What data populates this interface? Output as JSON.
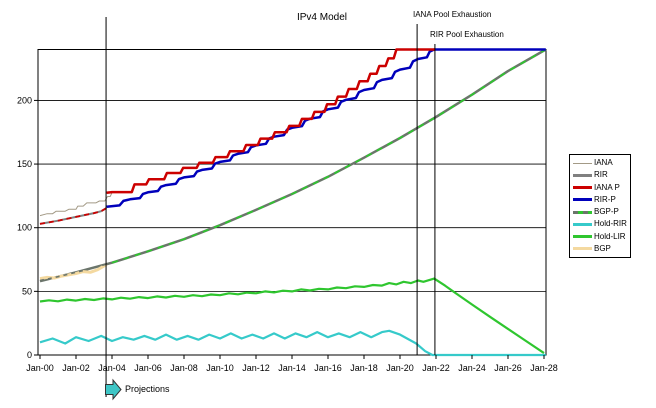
{
  "title": "IPv4 Model",
  "annotations": {
    "iana_pool": {
      "label": "IANA Pool Exhaustion"
    },
    "rir_pool": {
      "label": "RIR Pool Exhaustion"
    },
    "projections": {
      "label": "Projections",
      "arrow_color": "#3ec6c6"
    }
  },
  "legend": {
    "items": [
      {
        "label": "IANA",
        "color": "#a39a86",
        "thickness": 1
      },
      {
        "label": "RIR",
        "color": "#808080",
        "thickness": 3
      },
      {
        "label": "IANA P",
        "color": "#cc0000",
        "thickness": 3
      },
      {
        "label": "RIR-P",
        "color": "#0000bb",
        "thickness": 3
      },
      {
        "label": "BGP-P",
        "color": "#6b756b",
        "dash_color": "#2fc62f",
        "thickness": 3
      },
      {
        "label": "Hold-RIR",
        "color": "#36caca",
        "thickness": 3
      },
      {
        "label": "Hold-LIR",
        "color": "#2fc62f",
        "thickness": 3
      },
      {
        "label": "BGP",
        "color": "#f4d9a0",
        "thickness": 3
      }
    ]
  },
  "chart_data": {
    "type": "line",
    "title": "IPv4 Model",
    "xlabel": "",
    "ylabel": "",
    "x_ticks": [
      "Jan-00",
      "Jan-02",
      "Jan-04",
      "Jan-06",
      "Jan-08",
      "Jan-10",
      "Jan-12",
      "Jan-14",
      "Jan-16",
      "Jan-18",
      "Jan-20",
      "Jan-22",
      "Jan-24",
      "Jan-26",
      "Jan-28"
    ],
    "y_ticks": [
      0,
      50,
      100,
      150,
      200
    ],
    "x_range_years": [
      2000,
      2028
    ],
    "y_max": 240,
    "grid": "horizontal",
    "legend_position": "right",
    "events": {
      "projection_start_year": 2003.67,
      "iana_exhaustion_year": 2020.95,
      "rir_exhaustion_year": 2021.94
    },
    "series": [
      {
        "name": "BGP-P",
        "color": "#6b756b",
        "width": 2.5,
        "points": [
          [
            2000,
            58
          ],
          [
            2002,
            65
          ],
          [
            2004,
            72.5
          ],
          [
            2006,
            81.5
          ],
          [
            2008,
            91
          ],
          [
            2010,
            102
          ],
          [
            2012,
            114
          ],
          [
            2014,
            126.5
          ],
          [
            2016,
            140
          ],
          [
            2018,
            155
          ],
          [
            2020,
            170.5
          ],
          [
            2022,
            187
          ],
          [
            2024,
            204.5
          ],
          [
            2026,
            223
          ],
          [
            2028.1,
            240
          ]
        ]
      },
      {
        "name": "BGP",
        "color": "#f4d9a0",
        "width": 3,
        "points": [
          [
            2000,
            60
          ],
          [
            2000.4,
            61
          ],
          [
            2000.8,
            60.5
          ],
          [
            2001.2,
            62
          ],
          [
            2001.6,
            63
          ],
          [
            2002,
            64
          ],
          [
            2002.4,
            65.5
          ],
          [
            2002.8,
            65
          ],
          [
            2003.2,
            67
          ],
          [
            2003.7,
            71
          ]
        ]
      },
      {
        "name": "BGP-P-hist-dash",
        "color": "#6b756b",
        "width": 1.6,
        "dash": "4,4",
        "points": [
          [
            2000,
            58.5
          ],
          [
            2001,
            61.5
          ],
          [
            2002,
            65
          ],
          [
            2003,
            68.5
          ],
          [
            2003.7,
            71.5
          ]
        ]
      },
      {
        "name": "BGP-P-proj-dash",
        "color": "#2fc62f",
        "width": 1.8,
        "dash": "6,6",
        "points": [
          [
            2004,
            72.5
          ],
          [
            2006,
            81.5
          ],
          [
            2008,
            91
          ],
          [
            2010,
            102
          ],
          [
            2012,
            114
          ],
          [
            2014,
            126.5
          ],
          [
            2016,
            140
          ],
          [
            2018,
            155
          ],
          [
            2020,
            170.5
          ],
          [
            2022,
            187
          ],
          [
            2024,
            204.5
          ],
          [
            2026,
            223
          ],
          [
            2028.1,
            240
          ]
        ]
      },
      {
        "name": "IANA",
        "color": "#a39a86",
        "width": 1,
        "points": [
          [
            2000,
            109.5
          ],
          [
            2000.4,
            111
          ],
          [
            2000.7,
            111
          ],
          [
            2000.9,
            113
          ],
          [
            2001.4,
            113
          ],
          [
            2001.6,
            114.5
          ],
          [
            2002,
            114.5
          ],
          [
            2002.1,
            117
          ],
          [
            2002.4,
            117
          ],
          [
            2002.6,
            119.5
          ],
          [
            2003.1,
            119.5
          ],
          [
            2003.3,
            121
          ],
          [
            2003.6,
            121
          ],
          [
            2003.75,
            124.5
          ],
          [
            2003.9,
            124.5
          ],
          [
            2004,
            127.5
          ]
        ]
      },
      {
        "name": "RIR",
        "color": "#808080",
        "width": 2,
        "points": [
          [
            2000,
            103
          ],
          [
            2001,
            105.5
          ],
          [
            2002,
            108.5
          ],
          [
            2003,
            111.5
          ],
          [
            2003.4,
            113
          ],
          [
            2003.7,
            115.5
          ]
        ]
      },
      {
        "name": "RIR-red-dash",
        "color": "#cc0000",
        "width": 1.8,
        "dash": "5,4",
        "points": [
          [
            2000,
            103
          ],
          [
            2001,
            105.5
          ],
          [
            2002,
            108.5
          ],
          [
            2003,
            111.5
          ],
          [
            2003.4,
            113
          ],
          [
            2003.7,
            115.5
          ]
        ]
      },
      {
        "name": "RIR-P",
        "color": "#0000bb",
        "width": 2.5,
        "style": "substep",
        "points": [
          [
            2003.7,
            116.5
          ],
          [
            2005,
            122.3
          ],
          [
            2006,
            127.8
          ],
          [
            2007,
            133.5
          ],
          [
            2008,
            139.5
          ],
          [
            2009,
            145.4
          ],
          [
            2010,
            151.7
          ],
          [
            2011,
            158.1
          ],
          [
            2012,
            164.7
          ],
          [
            2013,
            171.5
          ],
          [
            2014,
            178.5
          ],
          [
            2015,
            185.6
          ],
          [
            2016,
            193
          ],
          [
            2017,
            200.5
          ],
          [
            2018,
            208.2
          ],
          [
            2019,
            216.1
          ],
          [
            2020,
            224.2
          ],
          [
            2021,
            232.5
          ],
          [
            2021.9,
            240
          ],
          [
            2028.1,
            240
          ]
        ]
      },
      {
        "name": "IANA P",
        "color": "#cc0000",
        "width": 2.5,
        "points": [
          [
            2003.7,
            127.5
          ],
          [
            2004,
            128
          ],
          [
            2005.1,
            128
          ],
          [
            2005.25,
            134
          ],
          [
            2005.9,
            134
          ],
          [
            2006.05,
            138
          ],
          [
            2006.9,
            138
          ],
          [
            2007.05,
            143
          ],
          [
            2007.8,
            143
          ],
          [
            2007.95,
            147
          ],
          [
            2008.7,
            147
          ],
          [
            2008.85,
            151
          ],
          [
            2009.6,
            151
          ],
          [
            2009.75,
            155.5
          ],
          [
            2010.4,
            155.5
          ],
          [
            2010.55,
            160
          ],
          [
            2011.3,
            160
          ],
          [
            2011.45,
            165
          ],
          [
            2012.1,
            165
          ],
          [
            2012.25,
            170
          ],
          [
            2012.9,
            170
          ],
          [
            2013.05,
            175
          ],
          [
            2013.7,
            175
          ],
          [
            2013.85,
            180
          ],
          [
            2014.4,
            180
          ],
          [
            2014.55,
            185.5
          ],
          [
            2015.1,
            185.5
          ],
          [
            2015.25,
            191
          ],
          [
            2015.8,
            191
          ],
          [
            2015.95,
            197
          ],
          [
            2016.4,
            197
          ],
          [
            2016.55,
            203
          ],
          [
            2017,
            203
          ],
          [
            2017.15,
            209
          ],
          [
            2017.6,
            209
          ],
          [
            2017.75,
            215
          ],
          [
            2018.2,
            215
          ],
          [
            2018.35,
            221
          ],
          [
            2018.7,
            221
          ],
          [
            2018.85,
            227
          ],
          [
            2019.2,
            227
          ],
          [
            2019.35,
            233
          ],
          [
            2019.65,
            233
          ],
          [
            2019.8,
            240
          ],
          [
            2021.95,
            240
          ]
        ]
      },
      {
        "name": "Hold-LIR",
        "color": "#2fc62f",
        "width": 2.2,
        "points": [
          [
            2000,
            42
          ],
          [
            2000.5,
            43
          ],
          [
            2001,
            42.2
          ],
          [
            2001.5,
            43.5
          ],
          [
            2002,
            42.7
          ],
          [
            2002.5,
            44
          ],
          [
            2003,
            43.2
          ],
          [
            2003.5,
            44.5
          ],
          [
            2004,
            43.7
          ],
          [
            2004.5,
            45
          ],
          [
            2005,
            44.2
          ],
          [
            2005.5,
            45.5
          ],
          [
            2006,
            44.7
          ],
          [
            2006.5,
            46
          ],
          [
            2007,
            45.2
          ],
          [
            2007.5,
            46.5
          ],
          [
            2008,
            45.7
          ],
          [
            2008.5,
            47
          ],
          [
            2009,
            46.2
          ],
          [
            2009.5,
            47.5
          ],
          [
            2010,
            47
          ],
          [
            2010.5,
            48.5
          ],
          [
            2011,
            47.7
          ],
          [
            2011.5,
            49
          ],
          [
            2012,
            48.5
          ],
          [
            2012.5,
            50
          ],
          [
            2013,
            49.2
          ],
          [
            2013.5,
            50.5
          ],
          [
            2014,
            50
          ],
          [
            2014.5,
            51.5
          ],
          [
            2015,
            50.7
          ],
          [
            2015.5,
            52
          ],
          [
            2016,
            51.5
          ],
          [
            2016.5,
            53
          ],
          [
            2017,
            52.5
          ],
          [
            2017.5,
            54
          ],
          [
            2018,
            53.5
          ],
          [
            2018.5,
            55
          ],
          [
            2019,
            54.5
          ],
          [
            2019.4,
            56.5
          ],
          [
            2019.8,
            55.5
          ],
          [
            2020.2,
            57.5
          ],
          [
            2020.6,
            56.5
          ],
          [
            2021,
            58.5
          ],
          [
            2021.3,
            57.5
          ],
          [
            2021.9,
            60
          ],
          [
            2022.5,
            54.5
          ],
          [
            2023,
            49.5
          ],
          [
            2024,
            39.7
          ],
          [
            2025,
            30
          ],
          [
            2026,
            20.5
          ],
          [
            2027,
            11
          ],
          [
            2028,
            1.5
          ]
        ]
      },
      {
        "name": "Hold-RIR",
        "color": "#36caca",
        "width": 2.2,
        "points": [
          [
            2000,
            10
          ],
          [
            2000.7,
            13
          ],
          [
            2001.4,
            9
          ],
          [
            2002,
            14
          ],
          [
            2002.7,
            11
          ],
          [
            2003.4,
            15
          ],
          [
            2004,
            11
          ],
          [
            2004.6,
            14
          ],
          [
            2005.2,
            12
          ],
          [
            2005.8,
            15
          ],
          [
            2006.4,
            12
          ],
          [
            2007,
            16
          ],
          [
            2007.6,
            12
          ],
          [
            2008.2,
            15
          ],
          [
            2008.8,
            12
          ],
          [
            2009.4,
            16
          ],
          [
            2010,
            13
          ],
          [
            2010.6,
            17
          ],
          [
            2011.2,
            13
          ],
          [
            2011.8,
            16
          ],
          [
            2012.4,
            13
          ],
          [
            2013,
            17
          ],
          [
            2013.6,
            13
          ],
          [
            2014.2,
            17
          ],
          [
            2014.8,
            14
          ],
          [
            2015.4,
            18
          ],
          [
            2016,
            14
          ],
          [
            2016.6,
            17
          ],
          [
            2017.2,
            14
          ],
          [
            2017.8,
            18
          ],
          [
            2018.4,
            14
          ],
          [
            2019,
            18
          ],
          [
            2019.4,
            19
          ],
          [
            2020,
            16
          ],
          [
            2020.9,
            9
          ],
          [
            2021.4,
            3
          ],
          [
            2021.8,
            0
          ],
          [
            2028.1,
            0
          ]
        ]
      }
    ]
  }
}
